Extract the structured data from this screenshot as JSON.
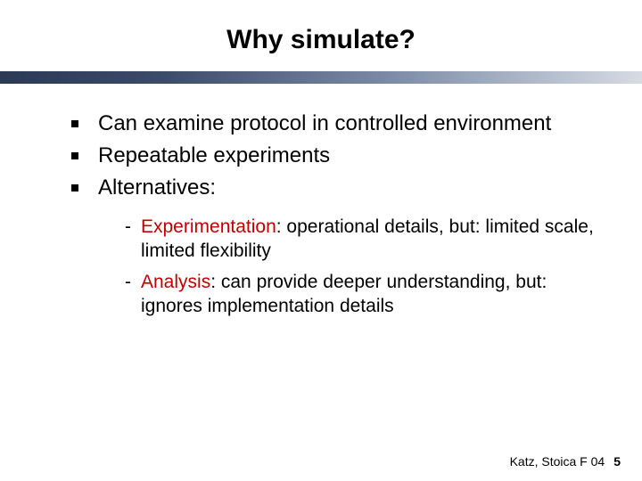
{
  "title": {
    "text": "Why simulate?",
    "fontsize": 30,
    "color": "#000000"
  },
  "divider": {
    "height": 14,
    "gradient_from": "#2b3a55",
    "gradient_to": "#d6dbe3"
  },
  "bullets": {
    "fontsize": 24,
    "color": "#000000",
    "items": [
      {
        "text": "Can examine protocol in controlled environment"
      },
      {
        "text": "Repeatable experiments"
      },
      {
        "text": "Alternatives:"
      }
    ]
  },
  "sub_bullets": {
    "fontsize": 21,
    "keyword_color": "#c00000",
    "text_color": "#000000",
    "items": [
      {
        "keyword": "Experimentation",
        "rest": ": operational details, but: limited scale, limited flexibility"
      },
      {
        "keyword": "Analysis",
        "rest": ": can provide deeper understanding, but: ignores implementation details"
      }
    ]
  },
  "footer": {
    "text": "Katz, Stoica F 04",
    "fontsize": 14,
    "page_number": "5",
    "page_fontsize": 14
  }
}
